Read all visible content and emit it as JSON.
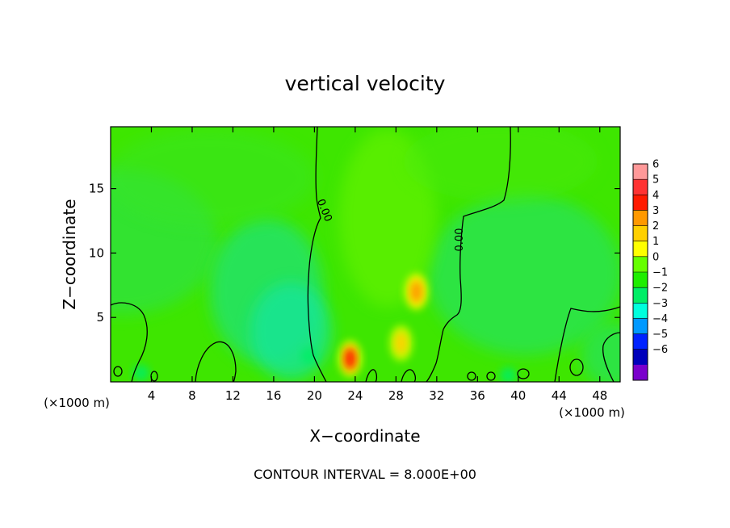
{
  "chart_data": {
    "type": "heatmap",
    "title": "vertical velocity",
    "xlabel": "X−coordinate",
    "ylabel": "Z−coordinate",
    "x_unit_left": "(×1000 m)",
    "x_unit_right": "(×1000 m)",
    "xlim": [
      0,
      50
    ],
    "ylim": [
      0,
      19.8
    ],
    "x_ticks": [
      4,
      8,
      12,
      16,
      20,
      24,
      28,
      32,
      36,
      40,
      44,
      48
    ],
    "x_tick_labels": [
      "4",
      "8",
      "12",
      "16",
      "20",
      "24",
      "28",
      "32",
      "36",
      "40",
      "44",
      "48"
    ],
    "y_ticks": [
      5,
      10,
      15
    ],
    "y_tick_labels": [
      "5",
      "10",
      "15"
    ],
    "contour_labels": [
      "0.00",
      "0.00"
    ],
    "footer": "CONTOUR INTERVAL = 8.000E+00",
    "colorbar": {
      "levels": [
        6,
        5,
        4,
        3,
        2,
        1,
        0,
        -1,
        -2,
        -3,
        -4,
        -5,
        -6
      ],
      "labels": [
        "6",
        "5",
        "4",
        "3",
        "2",
        "1",
        "0",
        "−1",
        "−2",
        "−3",
        "−4",
        "−5",
        "−6"
      ],
      "colors": [
        "#ff9999",
        "#ff3333",
        "#ff1a00",
        "#ff9900",
        "#ffd000",
        "#ffff00",
        "#66ff00",
        "#1eee00",
        "#00ee66",
        "#00ffdd",
        "#0099ff",
        "#0022ff",
        "#0000bb",
        "#7a00cc"
      ]
    },
    "features": [
      {
        "name": "updraft",
        "x": 23.5,
        "z": 1.8,
        "value": 4.5
      },
      {
        "name": "updraft",
        "x": 30.0,
        "z": 7.0,
        "value": 3.0
      },
      {
        "name": "updraft",
        "x": 28.5,
        "z": 3.0,
        "value": 1.8
      },
      {
        "name": "downdraft",
        "x": 19.5,
        "z": 2.0,
        "value": -1.8
      },
      {
        "name": "downdraft",
        "x": 3.0,
        "z": 0.7,
        "value": -1.5
      },
      {
        "name": "downdraft",
        "x": 39.0,
        "z": 0.5,
        "value": -2.0
      }
    ]
  }
}
